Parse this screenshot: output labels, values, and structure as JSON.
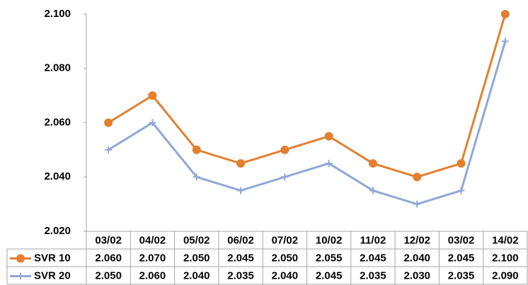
{
  "chart_data": {
    "type": "line",
    "categories": [
      "03/02",
      "04/02",
      "05/02",
      "06/02",
      "07/02",
      "10/02",
      "11/02",
      "12/02",
      "03/02",
      "14/02"
    ],
    "series": [
      {
        "name": "SVR 10",
        "color": "#e2802f",
        "marker": "circle",
        "values": [
          2.06,
          2.07,
          2.05,
          2.045,
          2.05,
          2.055,
          2.045,
          2.04,
          2.045,
          2.1
        ],
        "value_labels": [
          "2.060",
          "2.070",
          "2.050",
          "2.045",
          "2.050",
          "2.055",
          "2.045",
          "2.040",
          "2.045",
          "2.100"
        ]
      },
      {
        "name": "SVR 20",
        "color": "#8fa8d6",
        "marker": "plus",
        "values": [
          2.05,
          2.06,
          2.04,
          2.035,
          2.04,
          2.045,
          2.035,
          2.03,
          2.035,
          2.09
        ],
        "value_labels": [
          "2.050",
          "2.060",
          "2.040",
          "2.035",
          "2.040",
          "2.045",
          "2.035",
          "2.030",
          "2.035",
          "2.090"
        ]
      }
    ],
    "ylim": [
      2.02,
      2.1
    ],
    "yticks": [
      {
        "value": 2.02,
        "label": "2.020"
      },
      {
        "value": 2.04,
        "label": "2.040"
      },
      {
        "value": 2.06,
        "label": "2.060"
      },
      {
        "value": 2.08,
        "label": "2.080"
      },
      {
        "value": 2.1,
        "label": "2.100"
      }
    ],
    "grid": false
  }
}
